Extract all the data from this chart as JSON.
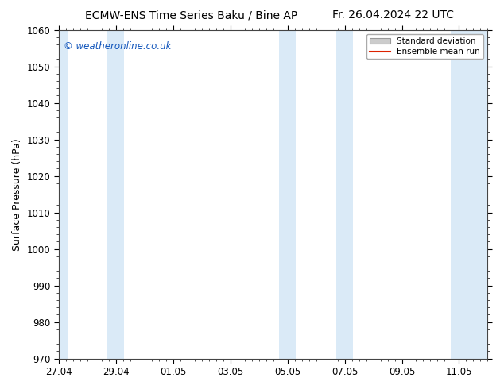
{
  "title_left": "ECMW-ENS Time Series Baku / Bine AP",
  "title_right": "Fr. 26.04.2024 22 UTC",
  "ylabel": "Surface Pressure (hPa)",
  "ylim": [
    970,
    1060
  ],
  "yticks": [
    970,
    980,
    990,
    1000,
    1010,
    1020,
    1030,
    1040,
    1050,
    1060
  ],
  "xlim_start": 0.0,
  "xlim_end": 15.0,
  "xtick_labels": [
    "27.04",
    "29.04",
    "01.05",
    "03.05",
    "05.05",
    "07.05",
    "09.05",
    "11.05"
  ],
  "xtick_positions": [
    0,
    2,
    4,
    6,
    8,
    10,
    12,
    14
  ],
  "shaded_bands": [
    {
      "x_start": 0.0,
      "x_end": 0.3
    },
    {
      "x_start": 1.7,
      "x_end": 2.3
    },
    {
      "x_start": 7.7,
      "x_end": 8.3
    },
    {
      "x_start": 9.7,
      "x_end": 10.3
    },
    {
      "x_start": 13.7,
      "x_end": 15.0
    }
  ],
  "shade_color": "#daeaf7",
  "bg_color": "#ffffff",
  "watermark_text": "© weatheronline.co.uk",
  "watermark_color": "#1155bb",
  "legend_std_dev_color": "#cccccc",
  "legend_std_dev_edge": "#999999",
  "legend_mean_color": "#dd2200",
  "title_fontsize": 10,
  "axis_label_fontsize": 9,
  "tick_fontsize": 8.5,
  "spine_color": "#444444"
}
